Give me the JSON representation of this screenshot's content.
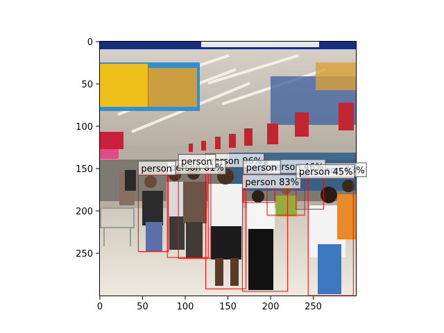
{
  "image": {
    "description_icon": "photo-icon",
    "scene": "supermarket-checkout-aisle"
  },
  "axes": {
    "x_ticks": [
      "0",
      "50",
      "100",
      "150",
      "200",
      "250"
    ],
    "y_ticks": [
      "0",
      "50",
      "100",
      "150",
      "200",
      "250"
    ],
    "xlim": [
      0,
      300
    ],
    "ylim": [
      300,
      0
    ]
  },
  "box_color": "#ff0000",
  "label_bg": "#ffffff",
  "detections": [
    {
      "label": "person 96%",
      "score": 0.96,
      "x0": 124,
      "y0": 147,
      "x1": 171,
      "y1": 292
    },
    {
      "label": "person 93%",
      "score": 0.93,
      "x0": 244,
      "y0": 158,
      "x1": 297,
      "y1": 300
    },
    {
      "label": "person 83%",
      "score": 0.83,
      "x0": 167,
      "y0": 172,
      "x1": 220,
      "y1": 295
    },
    {
      "label": "person 81%",
      "score": 0.81,
      "x0": 79,
      "y0": 155,
      "x1": 127,
      "y1": 255
    },
    {
      "label": "person 46%",
      "score": 0.46,
      "x0": 196,
      "y0": 154,
      "x1": 240,
      "y1": 205
    },
    {
      "label": "person",
      "score": null,
      "x0": 45,
      "y0": 156,
      "x1": 80,
      "y1": 248
    },
    {
      "label": "person",
      "score": null,
      "x0": 92,
      "y0": 148,
      "x1": 130,
      "y1": 256
    },
    {
      "label": "person",
      "score": null,
      "x0": 168,
      "y0": 155,
      "x1": 205,
      "y1": 190
    },
    {
      "label": "person 45%",
      "score": 0.45,
      "x0": 230,
      "y0": 160,
      "x1": 262,
      "y1": 198
    }
  ]
}
